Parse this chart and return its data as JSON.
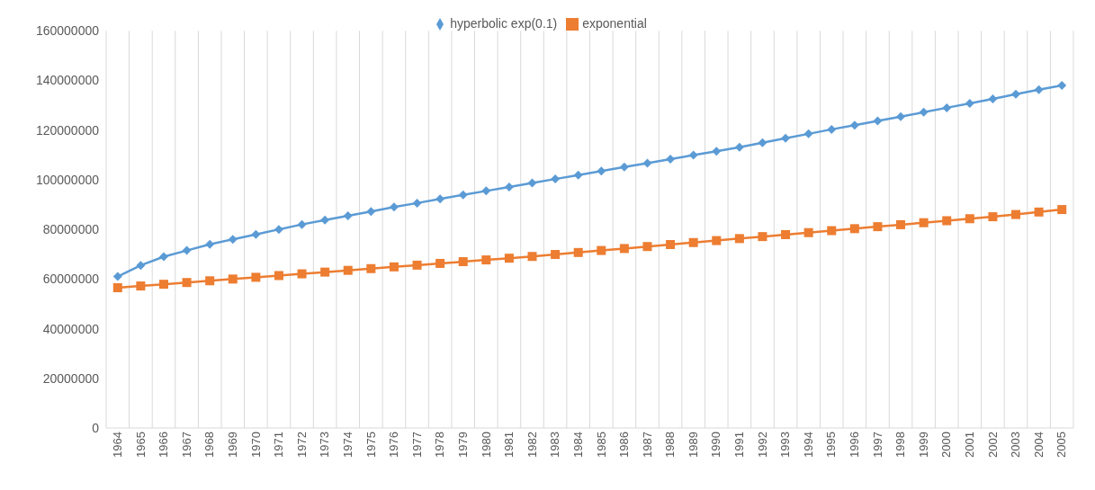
{
  "chart_data": {
    "type": "line",
    "categories": [
      "1964",
      "1965",
      "1966",
      "1967",
      "1968",
      "1969",
      "1970",
      "1971",
      "1972",
      "1973",
      "1974",
      "1975",
      "1976",
      "1977",
      "1978",
      "1979",
      "1980",
      "1981",
      "1982",
      "1983",
      "1984",
      "1985",
      "1986",
      "1987",
      "1988",
      "1989",
      "1990",
      "1991",
      "1992",
      "1993",
      "1994",
      "1995",
      "1996",
      "1997",
      "1998",
      "1999",
      "2000",
      "2001",
      "2002",
      "2003",
      "2004",
      "2005"
    ],
    "series": [
      {
        "name": "hyperbolic exp(0.1)",
        "color": "#5b9bd5",
        "marker": "diamond",
        "values": [
          61000000,
          65500000,
          69000000,
          71500000,
          74000000,
          76000000,
          78000000,
          80000000,
          82000000,
          83800000,
          85500000,
          87200000,
          89000000,
          90600000,
          92300000,
          93900000,
          95500000,
          97100000,
          98700000,
          100300000,
          101900000,
          103500000,
          105100000,
          106700000,
          108300000,
          109900000,
          111500000,
          113100000,
          114900000,
          116700000,
          118500000,
          120300000,
          122000000,
          123700000,
          125400000,
          127200000,
          129000000,
          130800000,
          132600000,
          134500000,
          136300000,
          138000000
        ]
      },
      {
        "name": "exponential",
        "color": "#ed7d31",
        "marker": "square",
        "values": [
          56500000,
          57200000,
          57900000,
          58600000,
          59300000,
          60000000,
          60700000,
          61400000,
          62100000,
          62800000,
          63500000,
          64200000,
          64900000,
          65600000,
          66300000,
          67000000,
          67700000,
          68400000,
          69100000,
          69900000,
          70700000,
          71500000,
          72300000,
          73100000,
          73900000,
          74700000,
          75500000,
          76300000,
          77100000,
          77900000,
          78700000,
          79500000,
          80300000,
          81100000,
          81900000,
          82700000,
          83500000,
          84300000,
          85100000,
          86000000,
          87000000,
          88000000
        ]
      }
    ],
    "ylim": [
      0,
      160000000
    ],
    "yticks": [
      0,
      20000000,
      40000000,
      60000000,
      80000000,
      100000000,
      120000000,
      140000000,
      160000000
    ],
    "grid": "x",
    "legend": "top",
    "line_style": "solid"
  }
}
